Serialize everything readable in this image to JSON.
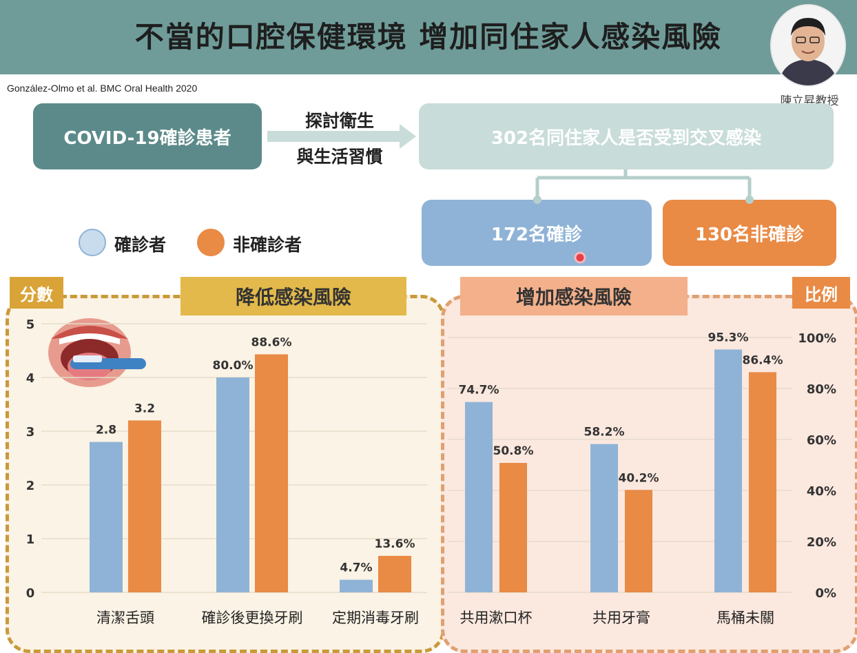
{
  "header": {
    "title": "不當的口腔保健環境 增加同住家人感染風險",
    "presenter": "陳立昇教授"
  },
  "citation": "González-Olmo et al. BMC Oral Health 2020",
  "flow": {
    "patients": "COVID-19確診患者",
    "method_line1": "探討衛生",
    "method_line2": "與生活習慣",
    "household": "302名同住家人是否受到交叉感染",
    "infected": "172名確診",
    "uninfected": "130名非確診"
  },
  "legend": {
    "infected": "確診者",
    "uninfected": "非確診者"
  },
  "panels": {
    "score_tag": "分數",
    "lower_risk": "降低感染風險",
    "raise_risk": "增加感染風險",
    "ratio_tag": "比例"
  },
  "colors": {
    "infected": "#8fb3d6",
    "uninfected": "#e98a45",
    "header": "#6f9c99"
  },
  "chart_data": [
    {
      "type": "bar",
      "panel": "降低感染風險",
      "categories": [
        "清潔舌頭",
        "確診後更換牙刷",
        "定期消毒牙刷"
      ],
      "ylabel": "分數",
      "ylim": [
        0,
        5
      ],
      "yticks": [
        "0",
        "1",
        "2",
        "3",
        "4",
        "5"
      ],
      "series": [
        {
          "name": "確診者",
          "values": [
            2.8,
            4.0,
            0.235
          ],
          "labels": [
            "2.8",
            "80.0%",
            "4.7%"
          ]
        },
        {
          "name": "非確診者",
          "values": [
            3.2,
            4.43,
            0.68
          ],
          "labels": [
            "3.2",
            "88.6%",
            "13.6%"
          ]
        }
      ]
    },
    {
      "type": "bar",
      "panel": "增加感染風險",
      "categories": [
        "共用漱口杯",
        "共用牙膏",
        "馬桶未關"
      ],
      "ylabel": "比例",
      "ylim": [
        0,
        100
      ],
      "yticks": [
        "0%",
        "20%",
        "40%",
        "60%",
        "80%",
        "100%"
      ],
      "series": [
        {
          "name": "確診者",
          "values": [
            74.7,
            58.2,
            95.3
          ],
          "labels": [
            "74.7%",
            "58.2%",
            "95.3%"
          ]
        },
        {
          "name": "非確診者",
          "values": [
            50.8,
            40.2,
            86.4
          ],
          "labels": [
            "50.8%",
            "40.2%",
            "86.4%"
          ]
        }
      ]
    }
  ]
}
